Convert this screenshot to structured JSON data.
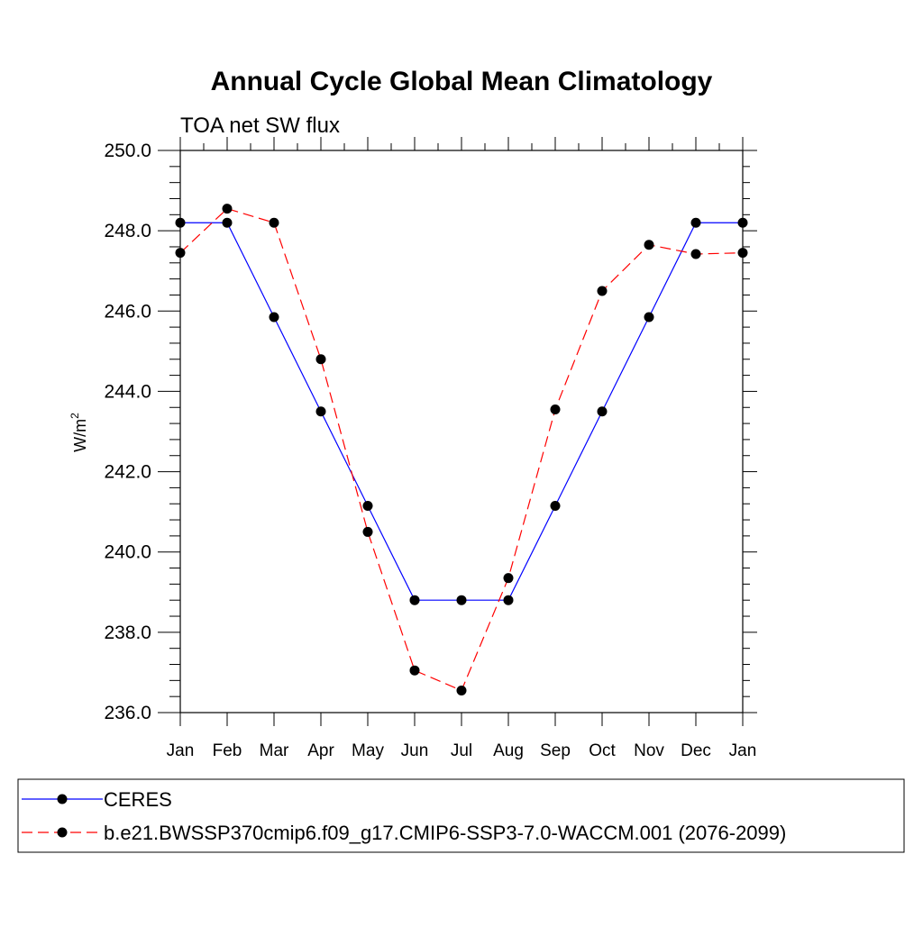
{
  "chart_data": {
    "type": "line",
    "title": "Annual Cycle Global Mean Climatology",
    "subtitle": "TOA net SW flux",
    "ylabel_base": "W/m",
    "ylabel_sup": "2",
    "xlabel": "",
    "ylim": [
      236.0,
      250.0
    ],
    "yticks": [
      "236.0",
      "238.0",
      "240.0",
      "242.0",
      "244.0",
      "246.0",
      "248.0",
      "250.0"
    ],
    "ytick_values": [
      236,
      238,
      240,
      242,
      244,
      246,
      248,
      250
    ],
    "categories": [
      "Jan",
      "Feb",
      "Mar",
      "Apr",
      "May",
      "Jun",
      "Jul",
      "Aug",
      "Sep",
      "Oct",
      "Nov",
      "Dec",
      "Jan"
    ],
    "grid": false,
    "legend_position": "bottom",
    "series": [
      {
        "name": "CERES",
        "color": "#0000ff",
        "dash": "solid",
        "marker": "filled-circle",
        "values": [
          248.2,
          248.2,
          245.85,
          243.5,
          241.15,
          238.8,
          238.8,
          238.8,
          241.15,
          243.5,
          245.85,
          248.2,
          248.2
        ]
      },
      {
        "name": "b.e21.BWSSP370cmip6.f09_g17.CMIP6-SSP3-7.0-WACCM.001 (2076-2099)",
        "color": "#ff0000",
        "dash": "dashed",
        "marker": "filled-circle",
        "values": [
          247.45,
          248.55,
          248.2,
          244.8,
          240.5,
          237.05,
          236.55,
          239.35,
          243.55,
          246.5,
          247.65,
          247.42,
          247.45
        ]
      }
    ]
  }
}
